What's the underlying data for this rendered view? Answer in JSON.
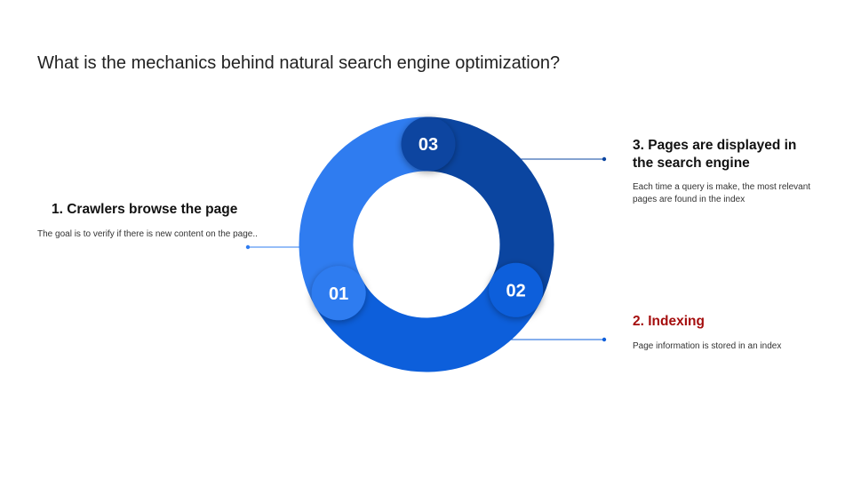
{
  "title": "What is the mechanics behind natural search engine optimization?",
  "steps": [
    {
      "number": "01",
      "heading": "1. Crawlers browse the page",
      "text": "The goal is to verify if there is new content on the page..",
      "color": "#2f7cf0",
      "heading_color": "#111111"
    },
    {
      "number": "02",
      "heading": "2. Indexing",
      "text": "Page information is stored in an index",
      "color": "#0d5fdb",
      "heading_color": "#a50e0e"
    },
    {
      "number": "03",
      "heading": "3. Pages are displayed in the search engine",
      "text": "Each time a query is make, the most relevant pages are found in the index",
      "color": "#0b45a0",
      "heading_color": "#111111"
    }
  ]
}
